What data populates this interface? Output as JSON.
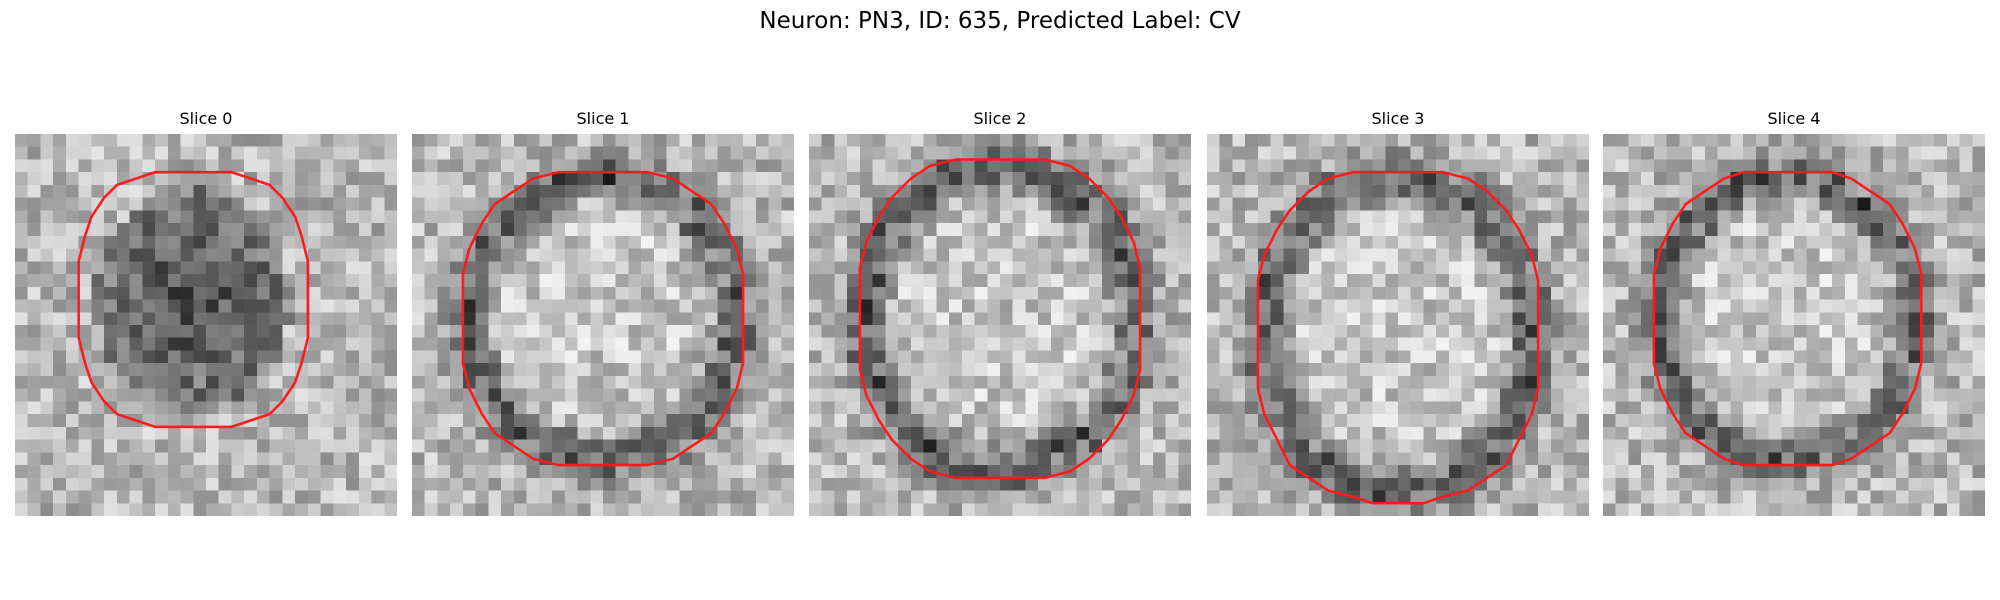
{
  "title": "Neuron: PN3, ID: 635, Predicted Label: CV",
  "panels": [
    {
      "title": "Slice 0"
    },
    {
      "title": "Slice 1"
    },
    {
      "title": "Slice 2"
    },
    {
      "title": "Slice 3"
    },
    {
      "title": "Slice 4"
    }
  ]
}
